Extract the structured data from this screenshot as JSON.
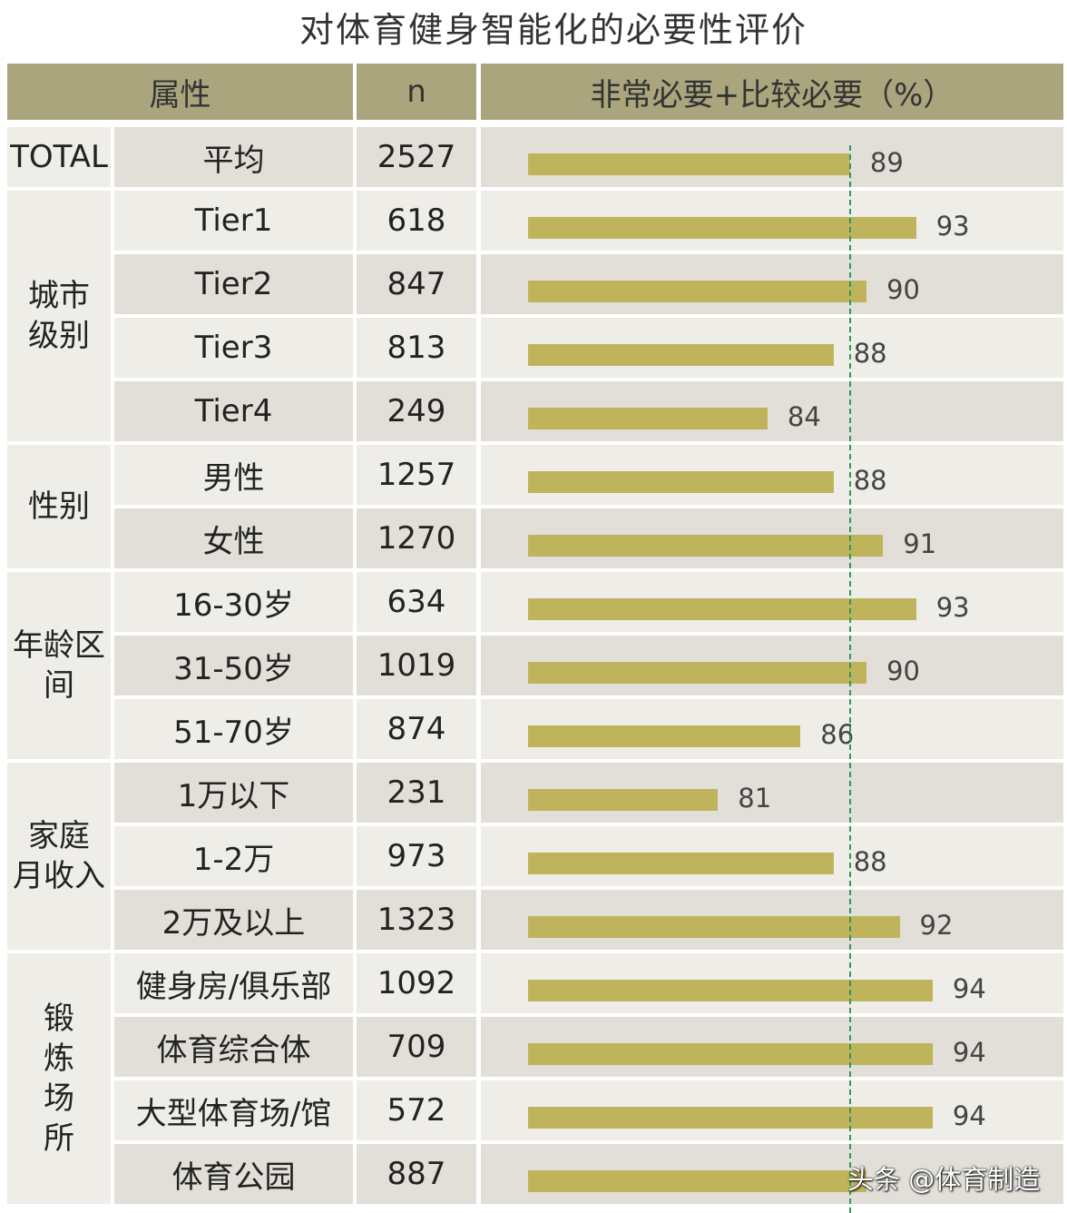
{
  "title": "对体育健身智能化的必要性评价",
  "headers": {
    "attribute": "属性",
    "n": "n",
    "metric": "非常必要+比较必要（%）"
  },
  "watermark": "头条 @体育制造",
  "colors": {
    "header": "#aaa57d",
    "bar": "#bfb45c",
    "average_line": "#2e9a5a"
  },
  "chart_data": {
    "type": "bar",
    "orientation": "horizontal",
    "title": "对体育健身智能化的必要性评价",
    "value_label": "非常必要+比较必要（%）",
    "reference_line": {
      "value": 89,
      "style": "dashed",
      "label": "平均"
    },
    "groups": [
      {
        "name": "TOTAL",
        "rows": [
          {
            "label": "平均",
            "n": "2527",
            "value": 89
          }
        ]
      },
      {
        "name": "城市级别",
        "rows": [
          {
            "label": "Tier1",
            "n": "618",
            "value": 93
          },
          {
            "label": "Tier2",
            "n": "847",
            "value": 90
          },
          {
            "label": "Tier3",
            "n": "813",
            "value": 88
          },
          {
            "label": "Tier4",
            "n": "249",
            "value": 84
          }
        ]
      },
      {
        "name": "性别",
        "rows": [
          {
            "label": "男性",
            "n": "1257",
            "value": 88
          },
          {
            "label": "女性",
            "n": "1270",
            "value": 91
          }
        ]
      },
      {
        "name": "年龄区间",
        "rows": [
          {
            "label": "16-30岁",
            "n": "634",
            "value": 93
          },
          {
            "label": "31-50岁",
            "n": "1019",
            "value": 90
          },
          {
            "label": "51-70岁",
            "n": "874",
            "value": 86
          }
        ]
      },
      {
        "name": "家庭月收入",
        "rows": [
          {
            "label": "1万以下",
            "n": "231",
            "value": 81
          },
          {
            "label": "1-2万",
            "n": "973",
            "value": 88
          },
          {
            "label": "2万及以上",
            "n": "1323",
            "value": 92
          }
        ]
      },
      {
        "name": "锻炼场所",
        "rows": [
          {
            "label": "健身房/俱乐部",
            "n": "1092",
            "value": 94
          },
          {
            "label": "体育综合体",
            "n": "709",
            "value": 94
          },
          {
            "label": "大型体育场/馆",
            "n": "572",
            "value": 94
          },
          {
            "label": "体育公园",
            "n": "887",
            "value": 90,
            "value_label_hidden": true
          }
        ]
      }
    ]
  }
}
